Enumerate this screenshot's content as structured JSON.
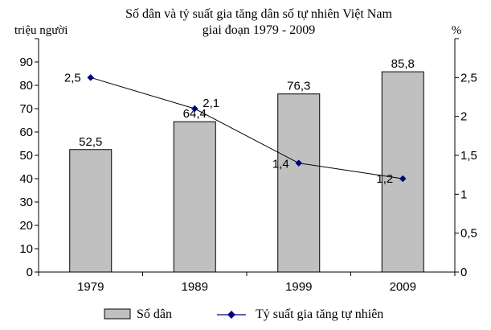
{
  "chart_data": {
    "type": "bar",
    "title_lines": [
      "Số dân và tỷ suất gia tăng dân số tự nhiên Việt Nam",
      "giai đoạn 1979 - 2009"
    ],
    "y_left_label": "triệu người",
    "y_right_label": "%",
    "categories": [
      "1979",
      "1989",
      "1999",
      "2009"
    ],
    "series": [
      {
        "name": "Số dân",
        "type": "bar",
        "axis": "left",
        "values": [
          52.5,
          64.4,
          76.3,
          85.8
        ],
        "labels": [
          "52,5",
          "64,4",
          "76,3",
          "85,8"
        ],
        "color": "#c0c0c0"
      },
      {
        "name": "Tỷ suất gia tăng tự nhiên",
        "type": "line",
        "axis": "right",
        "values": [
          2.5,
          2.1,
          1.4,
          1.2
        ],
        "labels": [
          "2,5",
          "2,1",
          "1,4",
          "1,2"
        ],
        "color": "#000080"
      }
    ],
    "y_left": {
      "min": 0,
      "max": 100,
      "ticks": [
        0,
        10,
        20,
        30,
        40,
        50,
        60,
        70,
        80,
        90
      ],
      "tick_labels": [
        "0",
        "10",
        "20",
        "30",
        "40",
        "50",
        "60",
        "70",
        "80",
        "90"
      ]
    },
    "y_right": {
      "min": 0,
      "max": 3,
      "ticks": [
        0,
        0.5,
        1,
        1.5,
        2,
        2.5
      ],
      "tick_labels": [
        "0",
        "0,5",
        "1",
        "1,5",
        "2",
        "2,5"
      ]
    },
    "grid": false,
    "legend_position": "bottom"
  }
}
